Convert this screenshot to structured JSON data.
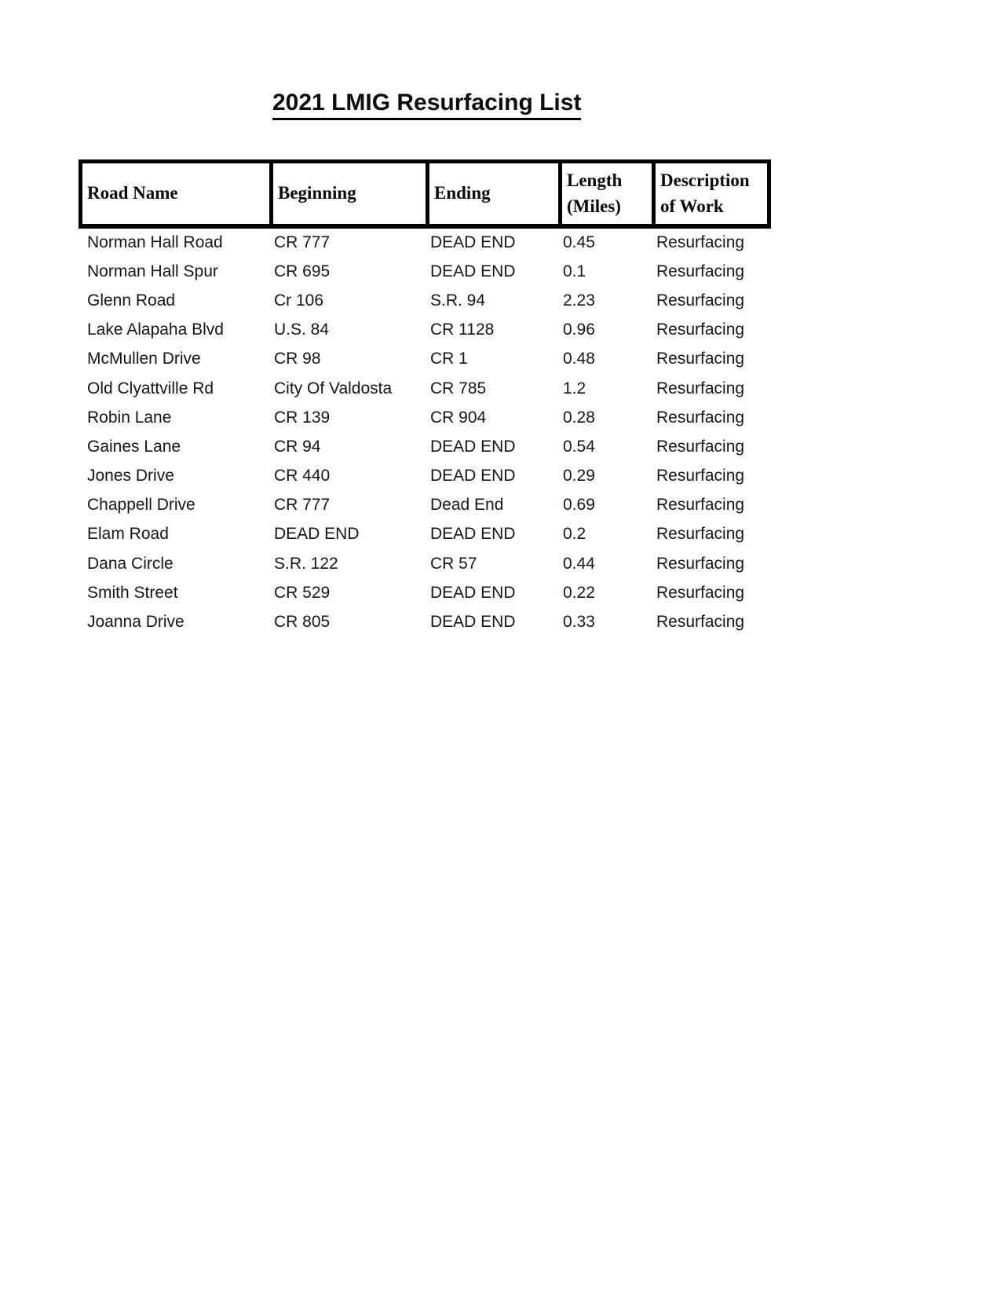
{
  "document": {
    "title": "2021 LMIG Resurfacing List"
  },
  "colors": {
    "text": "#161616",
    "heading_text": "#0a0a0a",
    "table_border": "#000000",
    "background": "#ffffff"
  },
  "table": {
    "columns": [
      "Road Name",
      "Beginning",
      "Ending",
      "Length (Miles)",
      "Description of Work"
    ],
    "rows": [
      {
        "road": "Norman Hall Road",
        "beginning": "CR 777",
        "ending": "DEAD END",
        "length": "0.45",
        "work": "Resurfacing"
      },
      {
        "road": "Norman Hall Spur",
        "beginning": "CR 695",
        "ending": "DEAD END",
        "length": "0.1",
        "work": "Resurfacing"
      },
      {
        "road": "Glenn Road",
        "beginning": "Cr 106",
        "ending": "S.R. 94",
        "length": "2.23",
        "work": "Resurfacing"
      },
      {
        "road": "Lake Alapaha Blvd",
        "beginning": "U.S. 84",
        "ending": "CR 1128",
        "length": "0.96",
        "work": "Resurfacing"
      },
      {
        "road": "McMullen Drive",
        "beginning": "CR 98",
        "ending": "CR 1",
        "length": "0.48",
        "work": "Resurfacing"
      },
      {
        "road": "Old Clyattville Rd",
        "beginning": "City Of Valdosta",
        "ending": "CR 785",
        "length": "1.2",
        "work": "Resurfacing"
      },
      {
        "road": "Robin Lane",
        "beginning": "CR 139",
        "ending": "CR 904",
        "length": "0.28",
        "work": "Resurfacing"
      },
      {
        "road": "Gaines Lane",
        "beginning": "CR 94",
        "ending": "DEAD END",
        "length": "0.54",
        "work": "Resurfacing"
      },
      {
        "road": "Jones Drive",
        "beginning": "CR 440",
        "ending": "DEAD END",
        "length": "0.29",
        "work": "Resurfacing"
      },
      {
        "road": "Chappell Drive",
        "beginning": "CR 777",
        "ending": "Dead End",
        "length": "0.69",
        "work": "Resurfacing"
      },
      {
        "road": "Elam Road",
        "beginning": "DEAD END",
        "ending": "DEAD END",
        "length": "0.2",
        "work": "Resurfacing"
      },
      {
        "road": "Dana Circle",
        "beginning": "S.R. 122",
        "ending": "CR 57",
        "length": "0.44",
        "work": "Resurfacing"
      },
      {
        "road": "Smith Street",
        "beginning": "CR 529",
        "ending": "DEAD END",
        "length": "0.22",
        "work": "Resurfacing"
      },
      {
        "road": "Joanna Drive",
        "beginning": "CR 805",
        "ending": "DEAD END",
        "length": "0.33",
        "work": "Resurfacing"
      }
    ]
  }
}
